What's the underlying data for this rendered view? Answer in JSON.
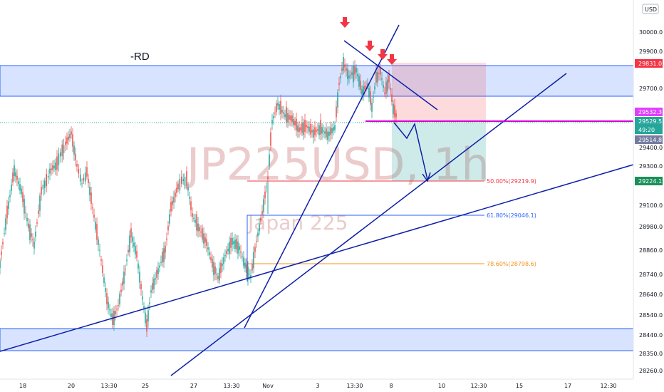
{
  "chart_data": {
    "type": "candlestick",
    "symbol_watermark": "JP225USD, 1h",
    "description_watermark": "Japan 225",
    "currency": "USD",
    "annotation_text": "-RD",
    "y_ticks": [
      "30000.0",
      "29900.0",
      "29700.0",
      "29400.0",
      "29300.0",
      "29100.0",
      "28980.0",
      "28860.0",
      "28740.0",
      "28640.0",
      "28540.0",
      "28440.0",
      "28350.0",
      "28260.0"
    ],
    "x_ticks": [
      "18",
      "20",
      "13:30",
      "25",
      "27",
      "13:30",
      "Nov",
      "3",
      "13:30",
      "8",
      "10",
      "12:30",
      "15",
      "17",
      "12:30"
    ],
    "price_tags": [
      {
        "text": "29831.0",
        "color": "#f23645"
      },
      {
        "text": "29532.3",
        "color": "#e040fb"
      },
      {
        "text": "29529.5",
        "color": "#26a69a"
      },
      {
        "text": "49:20",
        "color": "#26a69a"
      },
      {
        "text": "29514.8",
        "color": "#757ca0"
      },
      {
        "text": "29224.1",
        "color": "#1b8f5a"
      }
    ],
    "fib_levels": [
      {
        "label": "50.00%(29219.9)",
        "color": "#f23645"
      },
      {
        "label": "61.80%(29046.1)",
        "color": "#2962ff"
      },
      {
        "label": "78.60%(28798.6)",
        "color": "#f7931a"
      }
    ],
    "colors": {
      "up": "#26a69a",
      "down": "#ef5350",
      "zone": "#2962ff",
      "trend": "#0d1fa8",
      "magenta": "#d500d5",
      "arrow": "#f23645"
    }
  }
}
